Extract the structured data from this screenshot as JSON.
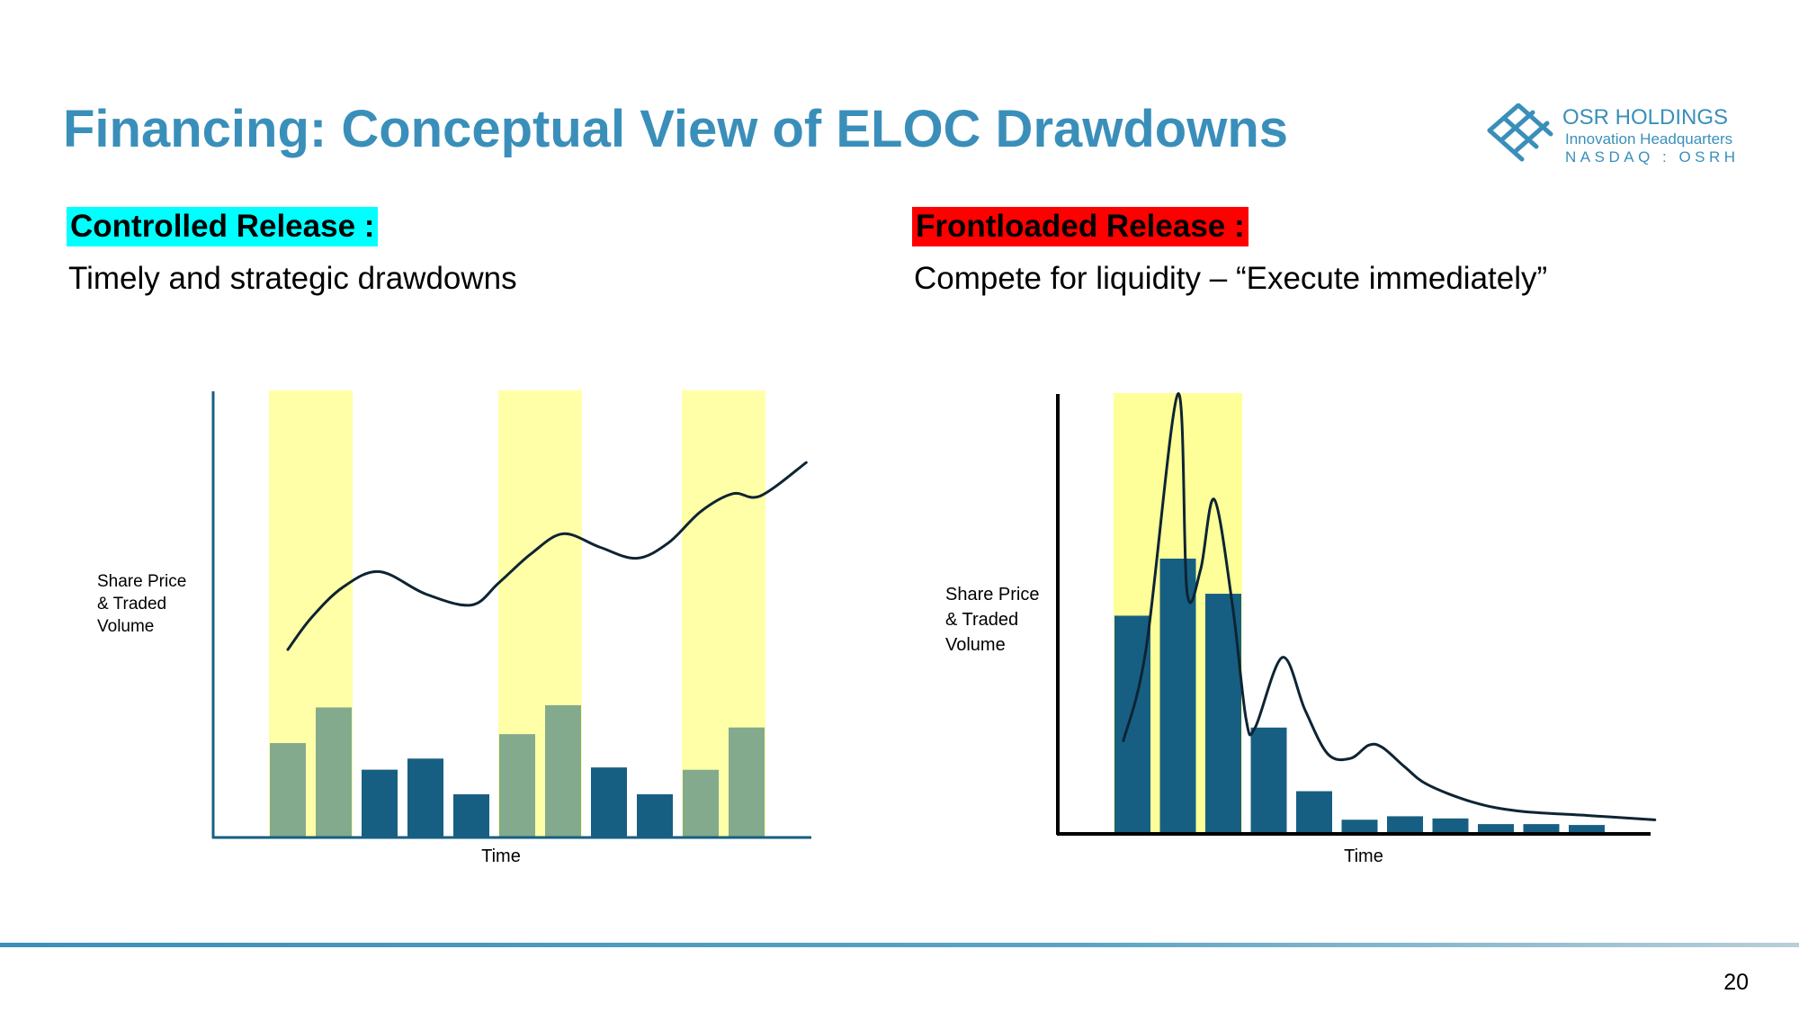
{
  "title": "Financing: Conceptual View of ELOC Drawdowns",
  "logo": {
    "name": "OSR HOLDINGS",
    "tagline": "Innovation Headquarters",
    "ticker": "NASDAQ : OSRH",
    "icon": "osr-lattice-icon"
  },
  "colors": {
    "title": "#3a8fba",
    "bar": "#175f82",
    "highlight": "#ffff99",
    "left_label_bg": "#00ffff",
    "right_label_bg": "#ff0000",
    "curve": "#0d2433"
  },
  "left_panel": {
    "label": "Controlled Release :",
    "subtitle": "Timely and strategic drawdowns"
  },
  "right_panel": {
    "label": "Frontloaded Release :",
    "subtitle": "Compete for liquidity – “Execute immediately”"
  },
  "page_number": "20",
  "chart_data": [
    {
      "type": "bar",
      "ylabel": "Share Price\n& Traded\nVolume",
      "xlabel": "Time",
      "ylim": [
        0,
        100
      ],
      "bar_count": 11,
      "values": [
        21,
        29,
        15,
        17.5,
        9.5,
        23,
        29.5,
        15.5,
        9.5,
        15,
        24.5
      ],
      "highlighted_bars": [
        0,
        1,
        5,
        6,
        9,
        10
      ],
      "highlight_bands": [
        [
          0,
          1
        ],
        [
          5,
          6
        ],
        [
          9,
          10
        ]
      ],
      "price_curve": {
        "x": [
          0,
          0.5,
          1.2,
          2,
          3,
          4,
          4.6,
          5.3,
          6,
          6.8,
          7.6,
          8.3,
          9,
          9.7,
          10.3,
          11.3
        ],
        "y": [
          42,
          49,
          56,
          59.5,
          54.5,
          52,
          57,
          63.5,
          68,
          65,
          62.5,
          66,
          73,
          77,
          76.5,
          84
        ]
      }
    },
    {
      "type": "bar",
      "ylabel": "Share Price\n& Traded\nVolume",
      "xlabel": "Time",
      "ylim": [
        0,
        100
      ],
      "bar_count": 11,
      "values": [
        49.5,
        62.5,
        54.5,
        24,
        9.5,
        3,
        3.8,
        3.3,
        2,
        2,
        1.8
      ],
      "highlight_bands": [
        [
          0,
          2
        ]
      ],
      "price_curve": {
        "x": [
          -0.2,
          0.3,
          1.0,
          1.2,
          1.5,
          1.8,
          2.2,
          2.5,
          2.7,
          3.3,
          3.8,
          4.3,
          4.8,
          5.2,
          5.5,
          6.0,
          6.5,
          7.5,
          8.5,
          10.0,
          11.5
        ],
        "y": [
          21,
          42,
          100,
          55,
          60,
          76,
          52,
          26,
          24,
          40,
          28,
          18,
          17,
          20,
          19.5,
          15,
          11,
          7,
          5,
          4,
          3
        ]
      }
    }
  ]
}
